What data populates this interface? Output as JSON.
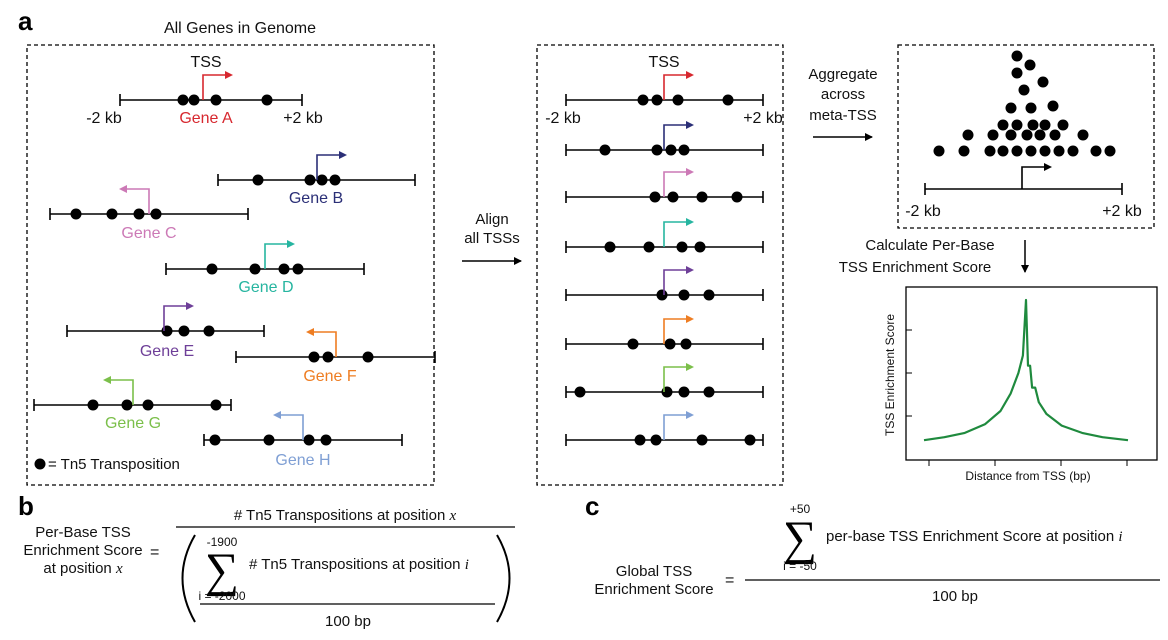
{
  "panels": {
    "a": "a",
    "b": "b",
    "c": "c"
  },
  "genome_box": {
    "title": "All Genes in Genome",
    "tss_label": "TSS",
    "left_tick": "-2 kb",
    "right_tick": "+2 kb",
    "legend": "= Tn5 Transposition",
    "genes": [
      {
        "name": "Gene A",
        "color": "#d7282f"
      },
      {
        "name": "Gene B",
        "color": "#2b2f77"
      },
      {
        "name": "Gene C",
        "color": "#cc79b6"
      },
      {
        "name": "Gene D",
        "color": "#26b5a0"
      },
      {
        "name": "Gene E",
        "color": "#6e3f98"
      },
      {
        "name": "Gene F",
        "color": "#ee7d22"
      },
      {
        "name": "Gene G",
        "color": "#7bbf4a"
      },
      {
        "name": "Gene H",
        "color": "#7f9fd4"
      }
    ]
  },
  "align_label": [
    "Align",
    "all TSSs"
  ],
  "aligned_box": {
    "tss_label": "TSS",
    "left_tick": "-2 kb",
    "right_tick": "+2 kb"
  },
  "aggregate_label": [
    "Aggregate",
    "across",
    "meta-TSS"
  ],
  "meta_box": {
    "left_tick": "-2 kb",
    "right_tick": "+2 kb"
  },
  "calc_label": [
    "Calculate Per-Base",
    "TSS Enrichment Score"
  ],
  "plot": {
    "ylabel": "TSS Enrichment Score",
    "xlabel": "Distance from TSS (bp)",
    "line_color": "#1f8a3e"
  },
  "formula_b": {
    "lhs": [
      "Per-Base TSS",
      "Enrichment Score",
      "at position"
    ],
    "lhs_var": "x",
    "numerator": "# Tn5 Transpositions at position",
    "numerator_var": "x",
    "sum_upper": "-1900",
    "sum_lower": "i = -2000",
    "sum_term": "# Tn5 Transpositions at position",
    "sum_term_var": "i",
    "inner_denominator": "100 bp"
  },
  "formula_c": {
    "lhs": [
      "Global TSS",
      "Enrichment Score"
    ],
    "sum_upper": "+50",
    "sum_lower": "i = -50",
    "sum_term": "per-base TSS Enrichment Score at position",
    "sum_term_var": "i",
    "denominator": "100 bp"
  },
  "chart_data": {
    "type": "line",
    "title": "",
    "xlabel": "Distance from TSS (bp)",
    "ylabel": "TSS Enrichment Score",
    "x": [
      -2000,
      -1600,
      -1200,
      -800,
      -500,
      -300,
      -150,
      -60,
      0,
      40,
      80,
      120,
      180,
      250,
      400,
      700,
      1100,
      1500,
      2000
    ],
    "series": [
      {
        "values": [
          0.04,
          0.06,
          0.09,
          0.15,
          0.24,
          0.36,
          0.5,
          0.62,
          1.0,
          0.55,
          0.55,
          0.4,
          0.4,
          0.3,
          0.22,
          0.14,
          0.09,
          0.06,
          0.04
        ]
      }
    ]
  }
}
